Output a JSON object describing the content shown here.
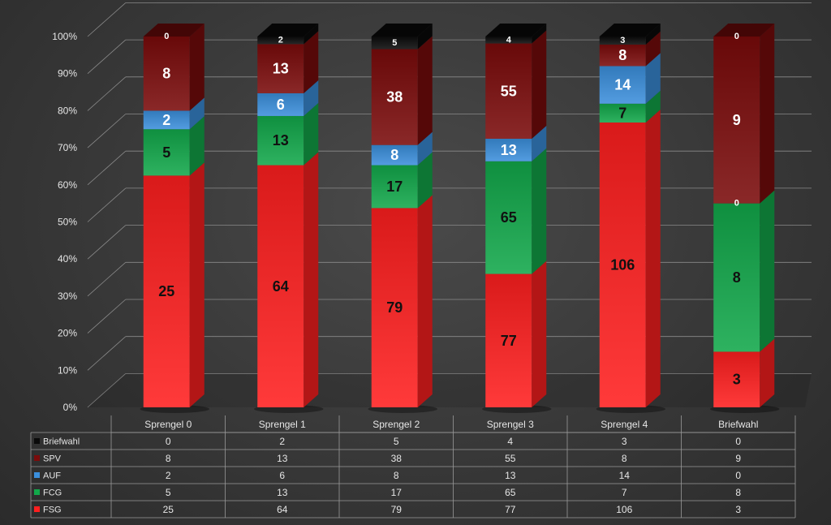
{
  "chart_data": {
    "type": "bar",
    "stacking": "percent",
    "three_d": true,
    "categories": [
      "Sprengel 0",
      "Sprengel 1",
      "Sprengel 2",
      "Sprengel 3",
      "Sprengel 4",
      "Briefwahl"
    ],
    "series": [
      {
        "name": "FSG",
        "color": "#ff1f1f",
        "values": [
          25,
          64,
          79,
          77,
          106,
          3
        ]
      },
      {
        "name": "FCG",
        "color": "#12a84a",
        "values": [
          5,
          13,
          17,
          65,
          7,
          8
        ]
      },
      {
        "name": "AUF",
        "color": "#3b8fdc",
        "values": [
          2,
          6,
          8,
          13,
          14,
          0
        ]
      },
      {
        "name": "SPV",
        "color": "#7a0b0b",
        "values": [
          8,
          13,
          38,
          55,
          8,
          9
        ]
      },
      {
        "name": "Briefwahl",
        "color": "#0a0a0a",
        "values": [
          0,
          2,
          5,
          4,
          3,
          0
        ]
      }
    ],
    "y_ticks": [
      "0%",
      "10%",
      "20%",
      "30%",
      "40%",
      "50%",
      "60%",
      "70%",
      "80%",
      "90%",
      "100%"
    ],
    "ylim": [
      0,
      100
    ],
    "grid": true,
    "legend": "data-table-below",
    "table_rows": [
      "Briefwahl",
      "SPV",
      "AUF",
      "FCG",
      "FSG"
    ],
    "title": "",
    "xlabel": "",
    "ylabel": ""
  }
}
